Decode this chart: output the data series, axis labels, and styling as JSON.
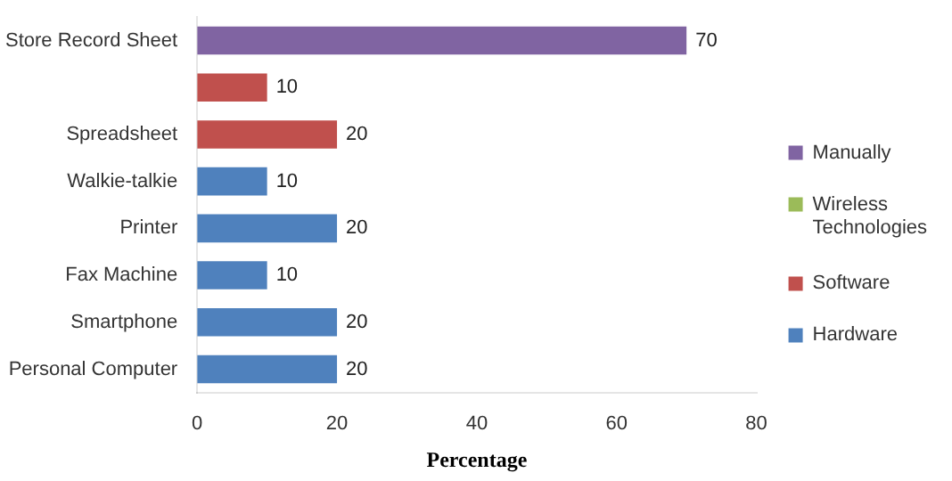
{
  "chart_data": {
    "type": "bar",
    "orientation": "horizontal",
    "stacked": true,
    "xlabel": "Percentage",
    "categories": [
      "Store Record Sheet",
      null,
      "Spreadsheet",
      "Walkie-talkie",
      "Printer",
      "Fax Machine",
      "Smartphone",
      "Personal Computer"
    ],
    "series": [
      {
        "name": "Manually",
        "color": "#8064a2",
        "values": [
          70,
          null,
          null,
          null,
          null,
          null,
          null,
          null
        ]
      },
      {
        "name": "Wireless Technologies",
        "color": "#9bbb59",
        "values": [
          null,
          null,
          null,
          null,
          null,
          null,
          null,
          null
        ]
      },
      {
        "name": "Software",
        "color": "#c0504d",
        "values": [
          null,
          10,
          20,
          null,
          null,
          null,
          null,
          null
        ]
      },
      {
        "name": "Hardware",
        "color": "#4f81bd",
        "values": [
          null,
          null,
          null,
          10,
          20,
          10,
          20,
          20
        ]
      }
    ],
    "xlim": [
      0,
      80
    ],
    "xticks": [
      0,
      20,
      40,
      60,
      80
    ],
    "grid": false,
    "legend": "right",
    "data_labels": true
  }
}
